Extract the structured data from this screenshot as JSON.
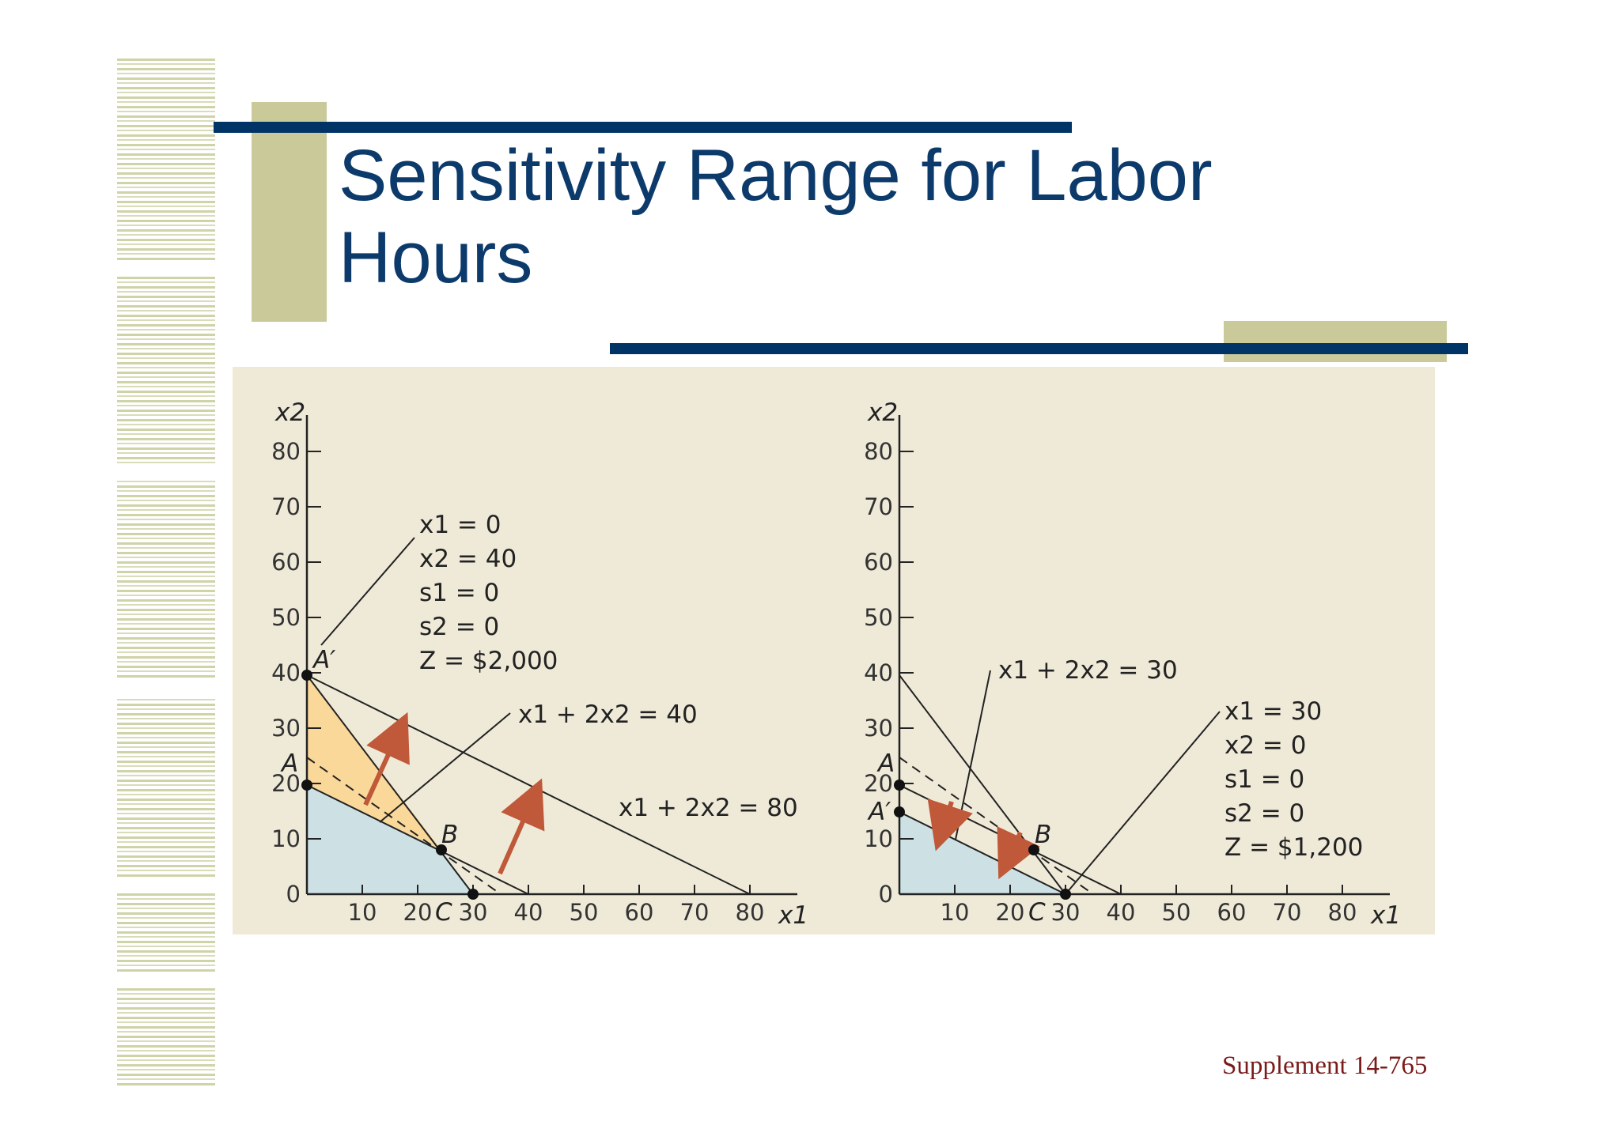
{
  "slide": {
    "title_line1": "Sensitivity Range for Labor",
    "title_line2": "Hours",
    "footer": "Supplement 14-765"
  },
  "colors": {
    "navy": "#003366",
    "olive": "#c9c99a",
    "panel": "#efead8",
    "feasible_blue": "#cde0e4",
    "feasible_orange": "#f9d89a",
    "arrow": "#c0583a",
    "footer": "#7a1a1a"
  },
  "charts": [
    {
      "id": "left",
      "xticks": [
        10,
        20,
        30,
        40,
        50,
        60,
        70,
        80
      ],
      "yticks": [
        0,
        10,
        20,
        30,
        40,
        50,
        60,
        70,
        80
      ],
      "axis_x": "x1",
      "axis_y": "x2",
      "points": {
        "A_prime": "A′",
        "A": "A",
        "B": "B",
        "C": "C"
      },
      "callout": [
        "x1 = 0",
        "x2 = 40",
        "s1 = 0",
        "s2 = 0",
        "Z = $2,000"
      ],
      "line_labels": [
        "x1 + 2x2 = 40",
        "x1 + 2x2 = 80"
      ]
    },
    {
      "id": "right",
      "xticks": [
        10,
        20,
        30,
        40,
        50,
        60,
        70,
        80
      ],
      "yticks": [
        0,
        10,
        20,
        30,
        40,
        50,
        60,
        70,
        80
      ],
      "axis_x": "x1",
      "axis_y": "x2",
      "points": {
        "A_prime": "A′",
        "A": "A",
        "B": "B",
        "C": "C"
      },
      "callout": [
        "x1 = 30",
        "x2 = 0",
        "s1 = 0",
        "s2 = 0",
        "Z = $1,200"
      ],
      "line_labels": [
        "x1 + 2x2 = 30"
      ]
    }
  ]
}
